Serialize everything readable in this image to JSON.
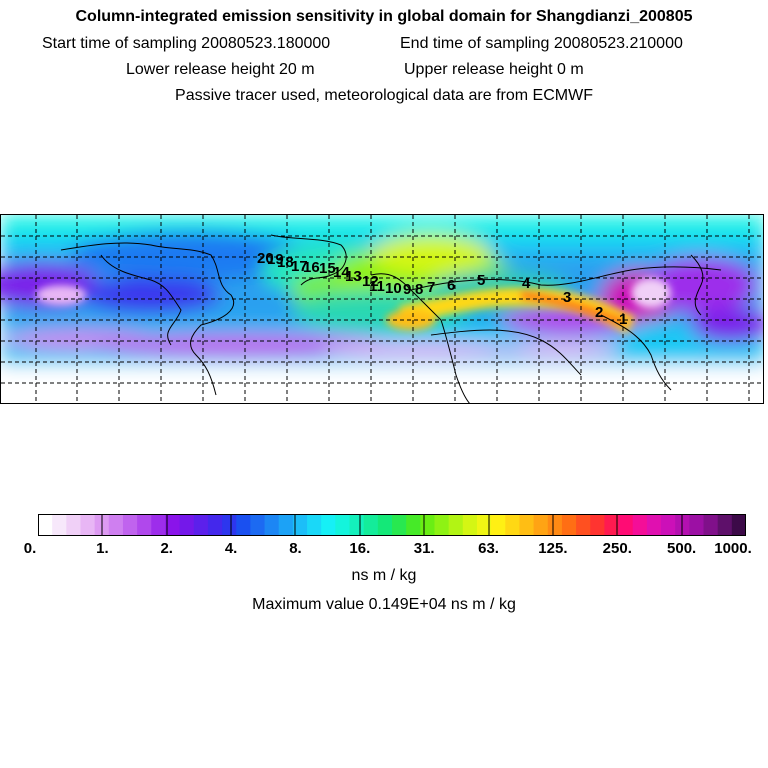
{
  "header": {
    "title": "Column-integrated emission sensitivity in global domain for Shangdianzi_200805",
    "start_label": "Start time of sampling 20080523.180000",
    "end_label": "End time of sampling 20080523.210000",
    "lower_label": "Lower release height   20 m",
    "upper_label": "Upper release height    0 m",
    "note": "Passive tracer used, meteorological data are from ECMWF"
  },
  "map": {
    "description_id": "emission-sensitivity-map",
    "trajectory_labels": [
      "1",
      "2",
      "3",
      "4",
      "5",
      "6",
      "7",
      "8",
      "9",
      "10",
      "11",
      "12",
      "13",
      "14",
      "15",
      "16",
      "17",
      "18",
      "19",
      "20"
    ]
  },
  "colorbar": {
    "tick_labels": [
      "0.",
      "1.",
      "2.",
      "4.",
      "8.",
      "16.",
      "31.",
      "63.",
      "125.",
      "250.",
      "500.",
      "1000."
    ],
    "unit": "ns m / kg",
    "colors": [
      "#ffffff",
      "#f7e8fb",
      "#f0d0f7",
      "#e8b6f5",
      "#dd9af2",
      "#cf7ff0",
      "#c063ee",
      "#b048ec",
      "#9d2deb",
      "#8a14ea",
      "#7418ea",
      "#5c20eb",
      "#4428ec",
      "#2d36ee",
      "#1a50f0",
      "#1c6af2",
      "#1c86f4",
      "#1ca2f6",
      "#1cbef8",
      "#1ad8f8",
      "#16f0f6",
      "#14f4dc",
      "#14f0bc",
      "#14ec9a",
      "#14e878",
      "#28e850",
      "#46ea28",
      "#6aee14",
      "#8ef214",
      "#b2f414",
      "#d4f614",
      "#f0f614",
      "#fff014",
      "#ffd814",
      "#ffbe14",
      "#ffa414",
      "#ff8a14",
      "#ff6e14",
      "#ff5020",
      "#ff3430",
      "#ff1a50",
      "#ff0c74",
      "#f40e98",
      "#e010b0",
      "#cc10b8",
      "#b410b0",
      "#9c10a4",
      "#80108a",
      "#5e106a",
      "#3c0a48"
    ],
    "max_value_label": "Maximum value  0.149E+04 ns m / kg"
  }
}
